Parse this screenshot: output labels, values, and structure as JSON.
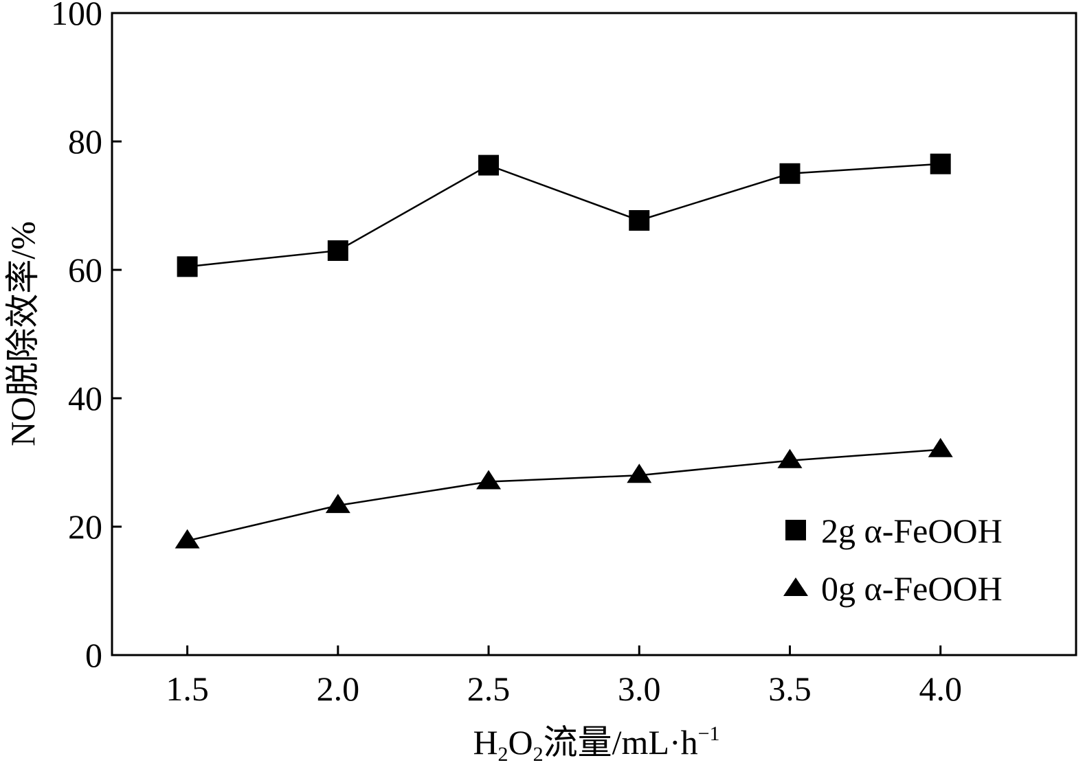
{
  "chart_data": {
    "type": "line",
    "title": "",
    "xlabel": "H2O2流量/mL·h-1",
    "xlabel_parts": {
      "h": "H",
      "sub1": "2",
      "o": "O",
      "sub2": "2",
      "rest": "流量/mL·h",
      "sup": "−1"
    },
    "ylabel": "NO脱除效率/%",
    "x": [
      1.5,
      2.0,
      2.5,
      3.0,
      3.5,
      4.0
    ],
    "xticks": [
      "1.5",
      "2.0",
      "2.5",
      "3.0",
      "3.5",
      "4.0"
    ],
    "yticks": [
      "0",
      "20",
      "40",
      "60",
      "80",
      "100"
    ],
    "ylim": [
      0,
      100
    ],
    "xlim": [
      1.25,
      4.45
    ],
    "grid": false,
    "legend_position": "bottom-right",
    "series": [
      {
        "name": "2g α-FeOOH",
        "marker": "square",
        "values": [
          60.5,
          63.0,
          76.3,
          67.7,
          75.0,
          76.5
        ]
      },
      {
        "name": "0g α-FeOOH",
        "marker": "triangle",
        "values": [
          17.8,
          23.3,
          27.0,
          28.0,
          30.3,
          32.0
        ]
      }
    ],
    "colors": {
      "line": "#000000",
      "marker": "#000000"
    }
  }
}
